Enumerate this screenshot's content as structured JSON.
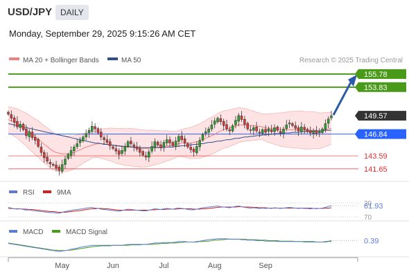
{
  "header": {
    "symbol": "USD/JPY",
    "timeframe": "DAILY",
    "datetime": "Monday, September 29, 2025 9:15:26 AM CET"
  },
  "legend": {
    "bb": {
      "label": "MA 20 + Bollinger Bands",
      "color": "#f08080"
    },
    "ma50": {
      "label": "MA 50",
      "color": "#2f4f8f"
    },
    "credit": "Research © 2025 Trading Central"
  },
  "chart_data": [
    {
      "type": "candlestick",
      "name": "price",
      "ylim": [
        140.4,
        156.7
      ],
      "x_labels": [
        "May",
        "Jun",
        "Jul",
        "Aug",
        "Sep"
      ],
      "close": [
        149.8,
        149.2,
        148.6,
        147.9,
        148.3,
        147.5,
        146.6,
        147.2,
        146.3,
        145.9,
        145.0,
        144.1,
        143.3,
        142.8,
        142.4,
        142.2,
        141.8,
        141.4,
        142.3,
        143.1,
        143.8,
        144.4,
        144.9,
        145.4,
        145.9,
        146.4,
        146.9,
        147.4,
        148.0,
        147.6,
        147.0,
        146.4,
        146.0,
        145.6,
        145.1,
        144.7,
        144.3,
        143.8,
        144.4,
        145.0,
        145.7,
        145.4,
        145.0,
        144.6,
        144.1,
        143.7,
        143.4,
        144.2,
        145.0,
        145.7,
        145.2,
        144.8,
        145.6,
        146.0,
        145.5,
        145.1,
        145.8,
        146.5,
        146.0,
        145.5,
        144.9,
        144.5,
        144.2,
        145.0,
        145.9,
        146.8,
        147.2,
        147.6,
        148.2,
        148.8,
        149.2,
        148.7,
        148.1,
        147.6,
        147.3,
        148.1,
        148.9,
        149.6,
        149.0,
        148.3,
        147.6,
        147.4,
        147.8,
        147.3,
        147.0,
        147.5,
        147.1,
        147.6,
        147.2,
        147.8,
        147.4,
        147.0,
        147.6,
        148.2,
        148.5,
        148.1,
        147.7,
        147.3,
        147.9,
        147.5,
        147.2,
        147.0,
        147.3,
        146.9,
        147.2,
        147.6,
        148.4,
        149.1,
        149.57
      ],
      "ma20": [
        149.0,
        148.8,
        148.6,
        148.4,
        148.1,
        147.8,
        147.5,
        147.1,
        146.8,
        146.4,
        146.1,
        145.7,
        145.3,
        145.0,
        144.6,
        144.3,
        144.1,
        144.0,
        143.9,
        143.9,
        143.9,
        144.0,
        144.1,
        144.3,
        144.5,
        144.7,
        144.9,
        145.0,
        145.2,
        145.3,
        145.4,
        145.4,
        145.4,
        145.3,
        145.3,
        145.2,
        145.1,
        145.0,
        145.0,
        144.9,
        144.9,
        144.9,
        144.8,
        144.8,
        144.7,
        144.7,
        144.7,
        144.7,
        144.8,
        144.8,
        144.9,
        144.9,
        145.0,
        145.1,
        145.1,
        145.2,
        145.3,
        145.4,
        145.5,
        145.5,
        145.5,
        145.5,
        145.6,
        145.7,
        145.8,
        146.0,
        146.2,
        146.4,
        146.6,
        146.8,
        147.1,
        147.3,
        147.5,
        147.6,
        147.7,
        147.9,
        148.0,
        148.2,
        148.2,
        148.2,
        148.2,
        148.1,
        148.1,
        148.0,
        148.0,
        147.9,
        147.8,
        147.7,
        147.7,
        147.6,
        147.6,
        147.5,
        147.5,
        147.5,
        147.5,
        147.5,
        147.5,
        147.5,
        147.5,
        147.4,
        147.4,
        147.4,
        147.4,
        147.4,
        147.3,
        147.4,
        147.5,
        147.6,
        147.7
      ],
      "ma50": [
        148.4,
        148.3,
        148.2,
        148.1,
        148.0,
        147.9,
        147.8,
        147.7,
        147.6,
        147.5,
        147.4,
        147.3,
        147.2,
        147.1,
        147.0,
        146.9,
        146.8,
        146.7,
        146.6,
        146.5,
        146.4,
        146.3,
        146.2,
        146.1,
        146.0,
        145.9,
        145.8,
        145.7,
        145.6,
        145.5,
        145.5,
        145.4,
        145.3,
        145.3,
        145.2,
        145.2,
        145.1,
        145.1,
        145.0,
        145.0,
        145.0,
        144.9,
        144.9,
        144.9,
        144.8,
        144.8,
        144.8,
        144.8,
        144.8,
        144.8,
        144.8,
        144.8,
        144.8,
        144.9,
        144.9,
        144.9,
        145.0,
        145.0,
        145.1,
        145.1,
        145.2,
        145.2,
        145.3,
        145.3,
        145.4,
        145.4,
        145.5,
        145.6,
        145.6,
        145.7,
        145.8,
        145.8,
        145.9,
        146.0,
        146.0,
        146.1,
        146.2,
        146.2,
        146.3,
        146.4,
        146.4,
        146.5,
        146.5,
        146.6,
        146.6,
        146.7,
        146.7,
        146.8,
        146.8,
        146.9,
        146.9,
        146.9,
        147.0,
        147.0,
        147.0,
        147.1,
        147.1,
        147.1,
        147.2,
        147.2,
        147.2,
        147.2,
        147.3,
        147.3,
        147.3,
        147.3,
        147.4,
        147.4,
        147.4
      ],
      "levels": [
        {
          "value": "155.78",
          "price": 155.78,
          "color": "#4a9a1a",
          "style": "filled"
        },
        {
          "value": "153.83",
          "price": 153.83,
          "color": "#4a9a1a",
          "style": "filled"
        },
        {
          "value": "149.57",
          "price": 149.57,
          "color": "#333333",
          "style": "filled"
        },
        {
          "value": "146.84",
          "price": 146.84,
          "color": "#2962ff",
          "style": "filled"
        },
        {
          "value": "143.59",
          "price": 143.59,
          "color": "#e03030",
          "style": "text"
        },
        {
          "value": "141.65",
          "price": 141.65,
          "color": "#e03030",
          "style": "text"
        }
      ],
      "projection": {
        "from": 149.57,
        "to": 155.78,
        "color": "#2a5aa8"
      }
    },
    {
      "type": "line",
      "name": "rsi",
      "ylim": [
        28,
        76
      ],
      "legend": [
        {
          "label": "RSI",
          "color": "#5b7bd5"
        },
        {
          "label": "9MA",
          "color": "#d02020"
        }
      ],
      "levels": [
        30,
        70
      ],
      "rsi": [
        57,
        55,
        53,
        52,
        53,
        51,
        49,
        50,
        48,
        47,
        46,
        45,
        44,
        43,
        42,
        42,
        41,
        40,
        43,
        45,
        47,
        48,
        50,
        51,
        52,
        53,
        55,
        56,
        57,
        55,
        54,
        52,
        51,
        50,
        49,
        48,
        47,
        46,
        48,
        50,
        52,
        51,
        50,
        49,
        48,
        47,
        47,
        49,
        51,
        53,
        52,
        51,
        53,
        54,
        53,
        52,
        54,
        55,
        54,
        53,
        51,
        50,
        50,
        52,
        54,
        56,
        57,
        58,
        59,
        60,
        61,
        59,
        58,
        57,
        56,
        58,
        60,
        61,
        59,
        57,
        56,
        55,
        56,
        55,
        54,
        55,
        54,
        55,
        54,
        56,
        55,
        54,
        55,
        56,
        57,
        56,
        55,
        54,
        55,
        54,
        54,
        53,
        54,
        53,
        54,
        55,
        57,
        60,
        61.93
      ],
      "ma9": [
        54,
        54,
        53,
        53,
        53,
        52,
        52,
        51,
        51,
        50,
        49,
        48,
        47,
        46,
        45,
        45,
        44,
        43,
        43,
        43,
        44,
        45,
        46,
        47,
        48,
        49,
        51,
        52,
        53,
        53,
        54,
        54,
        53,
        53,
        52,
        51,
        50,
        49,
        49,
        49,
        49,
        49,
        49,
        49,
        49,
        49,
        49,
        49,
        50,
        50,
        51,
        51,
        51,
        52,
        52,
        52,
        52,
        53,
        53,
        53,
        53,
        53,
        52,
        52,
        52,
        53,
        53,
        54,
        55,
        56,
        57,
        58,
        58,
        58,
        58,
        58,
        58,
        59,
        59,
        58,
        58,
        58,
        57,
        57,
        56,
        56,
        56,
        55,
        55,
        55,
        55,
        55,
        55,
        55,
        55,
        55,
        55,
        55,
        55,
        55,
        55,
        55,
        54,
        54,
        54,
        54,
        55,
        55,
        56
      ],
      "value_label": "61.93",
      "tick_labels": [
        "70",
        "30"
      ]
    },
    {
      "type": "line",
      "name": "macd",
      "ylim": [
        -2.6,
        1.2
      ],
      "legend": [
        {
          "label": "MACD",
          "color": "#5b7bd5"
        },
        {
          "label": "MACD Signal",
          "color": "#4a9a1a"
        }
      ],
      "macd": [
        -0.2,
        -0.3,
        -0.4,
        -0.5,
        -0.6,
        -0.7,
        -0.8,
        -0.9,
        -1.0,
        -1.1,
        -1.2,
        -1.3,
        -1.4,
        -1.5,
        -1.6,
        -1.7,
        -1.8,
        -1.9,
        -1.8,
        -1.7,
        -1.6,
        -1.4,
        -1.3,
        -1.2,
        -1.0,
        -0.9,
        -0.8,
        -0.7,
        -0.6,
        -0.6,
        -0.6,
        -0.6,
        -0.6,
        -0.6,
        -0.6,
        -0.6,
        -0.6,
        -0.6,
        -0.6,
        -0.5,
        -0.4,
        -0.4,
        -0.4,
        -0.4,
        -0.4,
        -0.4,
        -0.4,
        -0.3,
        -0.2,
        -0.1,
        -0.1,
        -0.1,
        0.0,
        0.0,
        0.0,
        0.0,
        0.1,
        0.2,
        0.2,
        0.2,
        0.1,
        0.1,
        0.1,
        0.2,
        0.3,
        0.4,
        0.5,
        0.6,
        0.7,
        0.7,
        0.8,
        0.8,
        0.8,
        0.8,
        0.7,
        0.7,
        0.7,
        0.7,
        0.6,
        0.6,
        0.5,
        0.5,
        0.5,
        0.4,
        0.4,
        0.4,
        0.3,
        0.3,
        0.3,
        0.3,
        0.2,
        0.2,
        0.2,
        0.2,
        0.2,
        0.2,
        0.2,
        0.2,
        0.2,
        0.1,
        0.1,
        0.1,
        0.1,
        0.1,
        0.1,
        0.1,
        0.2,
        0.3,
        0.39
      ],
      "signal": [
        -0.1,
        -0.2,
        -0.3,
        -0.4,
        -0.5,
        -0.6,
        -0.7,
        -0.8,
        -0.9,
        -1.0,
        -1.1,
        -1.2,
        -1.3,
        -1.4,
        -1.5,
        -1.6,
        -1.6,
        -1.7,
        -1.7,
        -1.7,
        -1.6,
        -1.6,
        -1.5,
        -1.4,
        -1.3,
        -1.2,
        -1.1,
        -1.0,
        -0.9,
        -0.8,
        -0.8,
        -0.7,
        -0.7,
        -0.7,
        -0.7,
        -0.6,
        -0.6,
        -0.6,
        -0.6,
        -0.6,
        -0.6,
        -0.5,
        -0.5,
        -0.5,
        -0.5,
        -0.4,
        -0.4,
        -0.4,
        -0.4,
        -0.3,
        -0.3,
        -0.2,
        -0.2,
        -0.2,
        -0.1,
        -0.1,
        -0.1,
        0.0,
        0.0,
        0.1,
        0.1,
        0.1,
        0.1,
        0.1,
        0.2,
        0.2,
        0.3,
        0.3,
        0.4,
        0.5,
        0.5,
        0.6,
        0.6,
        0.7,
        0.7,
        0.7,
        0.7,
        0.7,
        0.7,
        0.7,
        0.6,
        0.6,
        0.6,
        0.6,
        0.5,
        0.5,
        0.5,
        0.4,
        0.4,
        0.4,
        0.4,
        0.3,
        0.3,
        0.3,
        0.3,
        0.3,
        0.2,
        0.2,
        0.2,
        0.2,
        0.2,
        0.2,
        0.2,
        0.1,
        0.1,
        0.1,
        0.1,
        0.2,
        0.2
      ],
      "value_label": "0.39"
    }
  ]
}
